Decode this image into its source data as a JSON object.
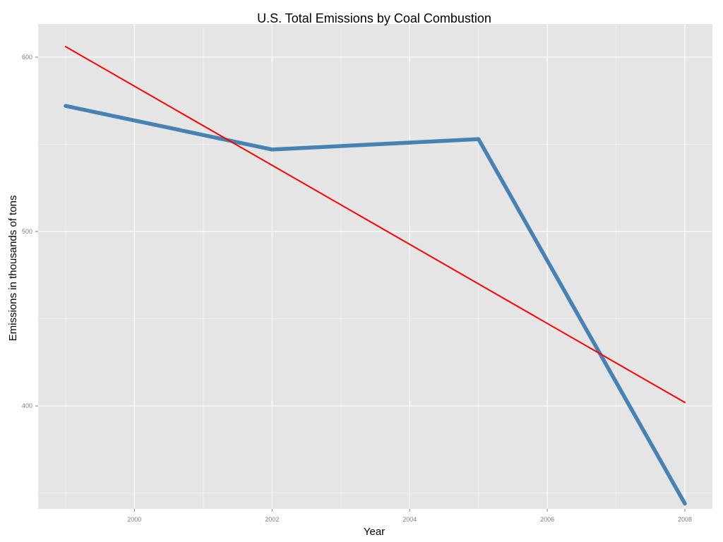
{
  "chart_data": {
    "type": "line",
    "title": "U.S. Total Emissions by Coal Combustion",
    "xlabel": "Year",
    "ylabel": "Emissions in thousands of tons",
    "xlim": [
      1998.6,
      2008.4
    ],
    "ylim": [
      341,
      619
    ],
    "x_ticks": [
      2000,
      2002,
      2004,
      2006,
      2008
    ],
    "y_ticks": [
      400,
      500,
      600
    ],
    "grid": true,
    "legend": "none",
    "series": [
      {
        "kind": "observed",
        "x": [
          1999,
          2002,
          2005,
          2008
        ],
        "y": [
          572,
          547,
          553,
          344
        ],
        "color": "#4682B4"
      },
      {
        "kind": "linear-fit",
        "x": [
          1999,
          2008
        ],
        "y": [
          606,
          402
        ],
        "color": "#FF0000"
      }
    ]
  },
  "colors": {
    "panel_background": "#E5E5E5",
    "grid_major": "#FFFFFF",
    "grid_minor": "#F2F2F2"
  }
}
